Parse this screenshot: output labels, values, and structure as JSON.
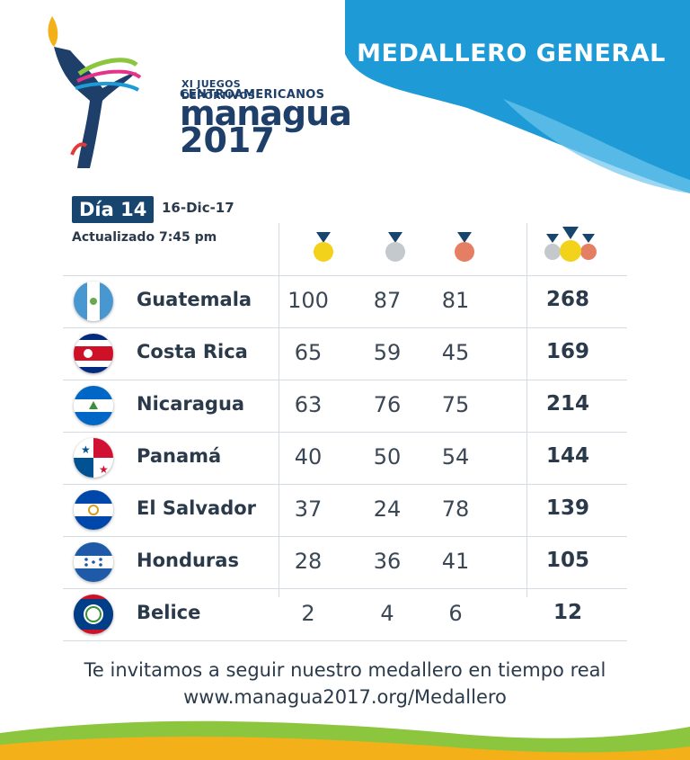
{
  "header": {
    "title": "MEDALLERO GENERAL"
  },
  "logo": {
    "line1": "XI JUEGOS DEPORTIVOS",
    "line2": "CENTROAMERICANOS",
    "city": "managua",
    "year": "2017"
  },
  "info": {
    "day_label": "Día 14",
    "date": "16-Dic-17",
    "updated": "Actualizado 7:45 pm"
  },
  "colors": {
    "brand_blue": "#17456e",
    "wave_blue": "#1e9ad6",
    "gold": "#f2d21a",
    "silver": "#c4c9ce",
    "bronze": "#e47f63"
  },
  "medal_icons": [
    "gold-medal-icon",
    "silver-medal-icon",
    "bronze-medal-icon",
    "total-medals-icon"
  ],
  "rows": [
    {
      "country": "Guatemala",
      "gold": "100",
      "silver": "87",
      "bronze": "81",
      "total": "268"
    },
    {
      "country": "Costa Rica",
      "gold": "65",
      "silver": "59",
      "bronze": "45",
      "total": "169"
    },
    {
      "country": "Nicaragua",
      "gold": "63",
      "silver": "76",
      "bronze": "75",
      "total": "214"
    },
    {
      "country": "Panamá",
      "gold": "40",
      "silver": "50",
      "bronze": "54",
      "total": "144"
    },
    {
      "country": "El Salvador",
      "gold": "37",
      "silver": "24",
      "bronze": "78",
      "total": "139"
    },
    {
      "country": "Honduras",
      "gold": "28",
      "silver": "36",
      "bronze": "41",
      "total": "105"
    },
    {
      "country": "Belice",
      "gold": "2",
      "silver": "4",
      "bronze": "6",
      "total": "12"
    }
  ],
  "footer": {
    "invite": "Te invitamos a seguir nuestro medallero en tiempo real",
    "url": "www.managua2017.org/Medallero"
  }
}
